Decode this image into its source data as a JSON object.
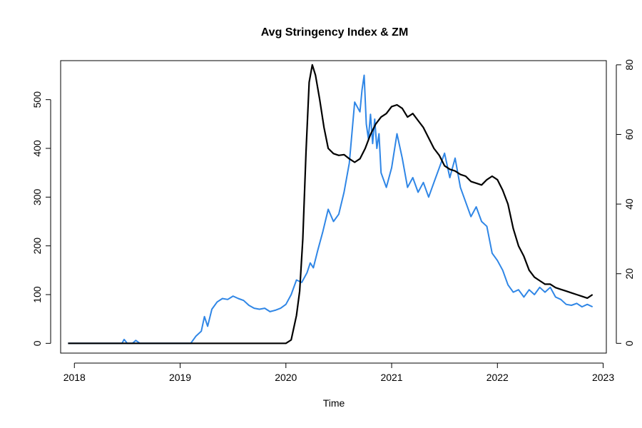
{
  "chart_data": {
    "type": "line",
    "title": "Avg Stringency Index & ZM",
    "xlabel": "Time",
    "ylabel_left": "",
    "ylabel_right": "",
    "xlim": [
      2017.87,
      2023.03
    ],
    "ylim_left": [
      -20,
      580
    ],
    "ylim_right": [
      -2.8,
      81.2
    ],
    "x_ticks": [
      2018,
      2019,
      2020,
      2021,
      2022,
      2023
    ],
    "y_ticks_left": [
      0,
      100,
      200,
      300,
      400,
      500
    ],
    "y_ticks_right": [
      0,
      20,
      40,
      60,
      80
    ],
    "grid": false,
    "legend": "none",
    "series": [
      {
        "axis": "left",
        "color": "#2f86e6",
        "x": [
          2017.94,
          2018.45,
          2018.47,
          2018.5,
          2018.55,
          2018.58,
          2018.62,
          2018.66,
          2019.1,
          2019.15,
          2019.2,
          2019.23,
          2019.26,
          2019.3,
          2019.35,
          2019.4,
          2019.45,
          2019.5,
          2019.55,
          2019.6,
          2019.65,
          2019.7,
          2019.75,
          2019.8,
          2019.85,
          2019.9,
          2019.95,
          2020.0,
          2020.05,
          2020.1,
          2020.15,
          2020.2,
          2020.23,
          2020.26,
          2020.3,
          2020.35,
          2020.4,
          2020.45,
          2020.5,
          2020.55,
          2020.6,
          2020.65,
          2020.7,
          2020.72,
          2020.74,
          2020.76,
          2020.78,
          2020.8,
          2020.82,
          2020.84,
          2020.86,
          2020.88,
          2020.9,
          2020.95,
          2021.0,
          2021.05,
          2021.1,
          2021.15,
          2021.2,
          2021.25,
          2021.3,
          2021.35,
          2021.4,
          2021.45,
          2021.5,
          2021.55,
          2021.6,
          2021.65,
          2021.7,
          2021.75,
          2021.8,
          2021.85,
          2021.9,
          2021.95,
          2022.0,
          2022.05,
          2022.1,
          2022.15,
          2022.2,
          2022.25,
          2022.3,
          2022.35,
          2022.4,
          2022.45,
          2022.5,
          2022.55,
          2022.6,
          2022.65,
          2022.7,
          2022.75,
          2022.8,
          2022.85,
          2022.9
        ],
        "values": [
          0,
          0,
          8,
          0,
          0,
          6,
          0,
          0,
          0,
          15,
          25,
          55,
          35,
          70,
          85,
          92,
          90,
          97,
          92,
          88,
          78,
          72,
          70,
          72,
          65,
          68,
          72,
          80,
          100,
          130,
          125,
          145,
          165,
          155,
          190,
          230,
          275,
          250,
          265,
          310,
          370,
          495,
          475,
          520,
          550,
          450,
          420,
          470,
          410,
          460,
          400,
          430,
          350,
          320,
          360,
          430,
          380,
          320,
          340,
          310,
          330,
          300,
          330,
          360,
          390,
          340,
          380,
          320,
          290,
          260,
          280,
          250,
          240,
          185,
          170,
          150,
          120,
          105,
          110,
          95,
          110,
          100,
          115,
          105,
          115,
          95,
          90,
          80,
          78,
          82,
          75,
          80,
          75
        ]
      },
      {
        "axis": "right",
        "color": "#000000",
        "x": [
          2017.94,
          2018.5,
          2019.0,
          2019.5,
          2020.0,
          2020.05,
          2020.1,
          2020.13,
          2020.16,
          2020.19,
          2020.22,
          2020.25,
          2020.28,
          2020.32,
          2020.36,
          2020.4,
          2020.45,
          2020.5,
          2020.55,
          2020.6,
          2020.65,
          2020.7,
          2020.75,
          2020.8,
          2020.85,
          2020.9,
          2020.95,
          2021.0,
          2021.05,
          2021.1,
          2021.15,
          2021.2,
          2021.25,
          2021.3,
          2021.35,
          2021.4,
          2021.45,
          2021.5,
          2021.55,
          2021.6,
          2021.65,
          2021.7,
          2021.75,
          2021.8,
          2021.85,
          2021.9,
          2021.95,
          2022.0,
          2022.05,
          2022.1,
          2022.15,
          2022.2,
          2022.25,
          2022.3,
          2022.35,
          2022.4,
          2022.45,
          2022.5,
          2022.55,
          2022.6,
          2022.65,
          2022.7,
          2022.75,
          2022.8,
          2022.85,
          2022.9
        ],
        "values": [
          0,
          0,
          0,
          0,
          0,
          1,
          8,
          15,
          30,
          55,
          75,
          80,
          77,
          70,
          62,
          56,
          54.5,
          54,
          54.2,
          53,
          52,
          53,
          56,
          60,
          63,
          65,
          66,
          68,
          68.5,
          67.5,
          65,
          66,
          64,
          62,
          59,
          56,
          54,
          51,
          50,
          49.5,
          48.5,
          48,
          46.5,
          46,
          45.5,
          47,
          48,
          47,
          44,
          40,
          33,
          28,
          25,
          21,
          19,
          18,
          17,
          17,
          16,
          15.5,
          15,
          14.5,
          14,
          13.5,
          13,
          14
        ]
      }
    ]
  }
}
